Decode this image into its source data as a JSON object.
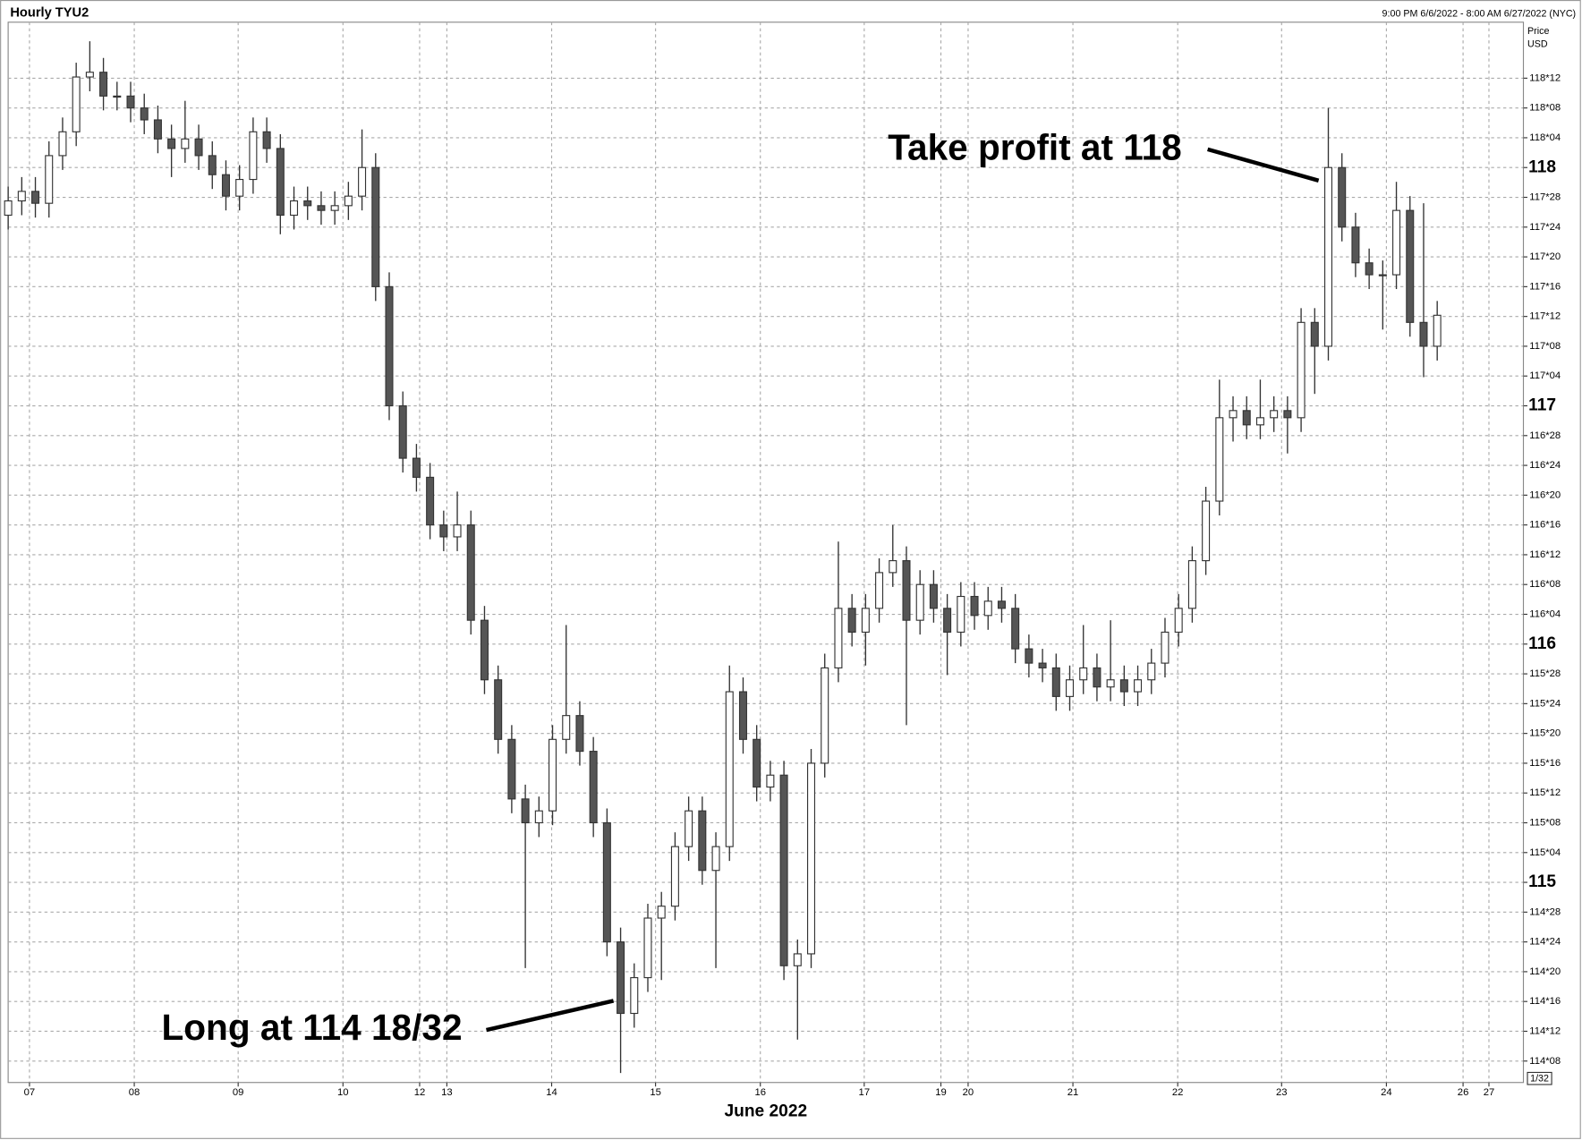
{
  "chart_data": {
    "type": "candlestick",
    "title": "Hourly TYU2",
    "subtitle": "9:00 PM 6/6/2022 - 8:00 AM 6/27/2022 (NYC)",
    "y_label": "Price",
    "y_unit": "USD",
    "x_label": "June 2022",
    "tick_unit": "1/32",
    "annotations": [
      {
        "text": "Take profit at 118"
      },
      {
        "text": "Long at 114 18/32"
      }
    ],
    "grid": true,
    "xlim": [
      0,
      334
    ],
    "ylim": [
      114.16,
      118.61
    ],
    "xticks": [
      {
        "value": 4.7,
        "label": "07"
      },
      {
        "value": 27.8,
        "label": "08"
      },
      {
        "value": 50.7,
        "label": "09"
      },
      {
        "value": 73.8,
        "label": "10"
      },
      {
        "value": 90.7,
        "label": "12"
      },
      {
        "value": 96.7,
        "label": "13"
      },
      {
        "value": 119.8,
        "label": "14"
      },
      {
        "value": 142.7,
        "label": "15"
      },
      {
        "value": 165.8,
        "label": "16"
      },
      {
        "value": 188.7,
        "label": "17"
      },
      {
        "value": 205.6,
        "label": "19"
      },
      {
        "value": 211.6,
        "label": "20"
      },
      {
        "value": 234.7,
        "label": "21"
      },
      {
        "value": 257.8,
        "label": "22"
      },
      {
        "value": 280.7,
        "label": "23"
      },
      {
        "value": 303.8,
        "label": "24"
      },
      {
        "value": 320.7,
        "label": "26"
      },
      {
        "value": 326.4,
        "label": "27"
      }
    ],
    "yticks": [
      {
        "value": 114.25,
        "label": "114*08"
      },
      {
        "value": 114.375,
        "label": "114*12"
      },
      {
        "value": 114.5,
        "label": "114*16"
      },
      {
        "value": 114.625,
        "label": "114*20"
      },
      {
        "value": 114.75,
        "label": "114*24"
      },
      {
        "value": 114.875,
        "label": "114*28"
      },
      115,
      {
        "value": 115.125,
        "label": "115*04"
      },
      {
        "value": 115.25,
        "label": "115*08"
      },
      {
        "value": 115.375,
        "label": "115*12"
      },
      {
        "value": 115.5,
        "label": "115*16"
      },
      {
        "value": 115.625,
        "label": "115*20"
      },
      {
        "value": 115.75,
        "label": "115*24"
      },
      {
        "value": 115.875,
        "label": "115*28"
      },
      116,
      {
        "value": 116.125,
        "label": "116*04"
      },
      {
        "value": 116.25,
        "label": "116*08"
      },
      {
        "value": 116.375,
        "label": "116*12"
      },
      {
        "value": 116.5,
        "label": "116*16"
      },
      {
        "value": 116.625,
        "label": "116*20"
      },
      {
        "value": 116.75,
        "label": "116*24"
      },
      {
        "value": 116.875,
        "label": "116*28"
      },
      117,
      {
        "value": 117.125,
        "label": "117*04"
      },
      {
        "value": 117.25,
        "label": "117*08"
      },
      {
        "value": 117.375,
        "label": "117*12"
      },
      {
        "value": 117.5,
        "label": "117*16"
      },
      {
        "value": 117.625,
        "label": "117*20"
      },
      {
        "value": 117.75,
        "label": "117*24"
      },
      {
        "value": 117.875,
        "label": "117*28"
      },
      118,
      {
        "value": 118.125,
        "label": "118*04"
      },
      {
        "value": 118.25,
        "label": "118*08"
      },
      {
        "value": 118.375,
        "label": "118*12"
      }
    ],
    "up_color": "#ffffff",
    "down_color": "#555555",
    "line_color": "#333333",
    "x": [
      0,
      3,
      6,
      9,
      12,
      15,
      18,
      21,
      24,
      27,
      30,
      33,
      36,
      39,
      42,
      45,
      48,
      51,
      54,
      57,
      60,
      63,
      66,
      69,
      72,
      75,
      78,
      81,
      84,
      87,
      90,
      93,
      96,
      99,
      102,
      105,
      108,
      111,
      114,
      117,
      120,
      123,
      126,
      129,
      132,
      135,
      138,
      141,
      144,
      147,
      150,
      153,
      156,
      159,
      162,
      165,
      168,
      171,
      174,
      177,
      180,
      183,
      186,
      189,
      192,
      195,
      198,
      201,
      204,
      207,
      210,
      213,
      216,
      219,
      222,
      225,
      228,
      231,
      234,
      237,
      240,
      243,
      246,
      249,
      252,
      255,
      258,
      261,
      264,
      267,
      270,
      273,
      276,
      279,
      282,
      285,
      288,
      291,
      294,
      297,
      300,
      303,
      306,
      309,
      312,
      315
    ],
    "open": [
      117.8,
      117.86,
      117.9,
      117.85,
      118.05,
      118.15,
      118.38,
      118.4,
      118.3,
      118.3,
      118.25,
      118.2,
      118.12,
      118.08,
      118.12,
      118.05,
      117.97,
      117.88,
      117.95,
      118.15,
      118.08,
      117.8,
      117.86,
      117.84,
      117.82,
      117.84,
      117.88,
      118.0,
      117.5,
      117.0,
      116.78,
      116.7,
      116.5,
      116.45,
      116.5,
      116.1,
      115.85,
      115.6,
      115.35,
      115.25,
      115.3,
      115.6,
      115.7,
      115.55,
      115.25,
      114.75,
      114.45,
      114.6,
      114.85,
      114.9,
      115.15,
      115.3,
      115.05,
      115.15,
      115.8,
      115.6,
      115.4,
      115.45,
      114.65,
      114.7,
      115.5,
      115.9,
      116.15,
      116.05,
      116.15,
      116.3,
      116.35,
      116.1,
      116.25,
      116.15,
      116.05,
      116.2,
      116.12,
      116.18,
      116.15,
      115.98,
      115.92,
      115.9,
      115.78,
      115.85,
      115.9,
      115.82,
      115.85,
      115.8,
      115.85,
      115.92,
      116.05,
      116.15,
      116.35,
      116.6,
      116.95,
      116.98,
      116.92,
      116.95,
      116.98,
      116.95,
      117.35,
      117.25,
      118.0,
      117.75,
      117.6,
      117.55,
      117.55,
      117.82,
      117.35,
      117.25
    ],
    "high": [
      117.92,
      117.96,
      117.96,
      118.11,
      118.21,
      118.44,
      118.53,
      118.46,
      118.36,
      118.36,
      118.31,
      118.26,
      118.18,
      118.28,
      118.18,
      118.11,
      118.03,
      118.01,
      118.21,
      118.21,
      118.14,
      117.92,
      117.92,
      117.9,
      117.9,
      117.94,
      118.16,
      118.06,
      117.56,
      117.06,
      116.84,
      116.76,
      116.56,
      116.64,
      116.56,
      116.16,
      115.91,
      115.66,
      115.41,
      115.36,
      115.66,
      116.08,
      115.76,
      115.61,
      115.31,
      114.81,
      114.66,
      114.91,
      114.96,
      115.21,
      115.36,
      115.36,
      115.21,
      115.91,
      115.86,
      115.66,
      115.51,
      115.51,
      114.76,
      115.56,
      115.96,
      116.43,
      116.21,
      116.21,
      116.36,
      116.5,
      116.41,
      116.31,
      116.31,
      116.21,
      116.26,
      116.26,
      116.24,
      116.24,
      116.21,
      116.04,
      115.98,
      115.96,
      115.91,
      116.08,
      115.96,
      116.1,
      115.91,
      115.91,
      115.98,
      116.11,
      116.21,
      116.41,
      116.66,
      117.11,
      117.04,
      117.04,
      117.11,
      117.04,
      117.04,
      117.41,
      117.41,
      118.25,
      118.06,
      117.81,
      117.66,
      117.61,
      117.94,
      117.88,
      117.85,
      117.44
    ],
    "low": [
      117.74,
      117.8,
      117.79,
      117.79,
      117.99,
      118.09,
      118.32,
      118.24,
      118.24,
      118.19,
      118.14,
      118.06,
      117.96,
      118.02,
      117.99,
      117.91,
      117.82,
      117.82,
      117.89,
      118.02,
      117.72,
      117.74,
      117.78,
      117.76,
      117.76,
      117.78,
      117.82,
      117.44,
      116.94,
      116.72,
      116.64,
      116.44,
      116.39,
      116.39,
      116.04,
      115.79,
      115.54,
      115.29,
      114.64,
      115.19,
      115.24,
      115.54,
      115.49,
      115.19,
      114.69,
      114.2,
      114.39,
      114.54,
      114.59,
      114.84,
      115.09,
      114.99,
      114.64,
      115.09,
      115.54,
      115.34,
      115.34,
      114.59,
      114.34,
      114.64,
      115.44,
      115.84,
      115.99,
      115.91,
      116.09,
      116.24,
      115.66,
      116.04,
      116.09,
      115.87,
      115.99,
      116.06,
      116.06,
      116.09,
      115.92,
      115.86,
      115.84,
      115.72,
      115.72,
      115.79,
      115.76,
      115.76,
      115.74,
      115.74,
      115.79,
      115.86,
      115.99,
      116.09,
      116.29,
      116.54,
      116.85,
      116.86,
      116.86,
      116.89,
      116.8,
      116.89,
      117.05,
      117.19,
      117.69,
      117.54,
      117.49,
      117.32,
      117.49,
      117.29,
      117.12,
      117.19
    ],
    "close": [
      117.86,
      117.9,
      117.85,
      118.05,
      118.15,
      118.38,
      118.4,
      118.3,
      118.3,
      118.25,
      118.2,
      118.12,
      118.08,
      118.12,
      118.05,
      117.97,
      117.88,
      117.95,
      118.15,
      118.08,
      117.8,
      117.86,
      117.84,
      117.82,
      117.84,
      117.88,
      118.0,
      117.5,
      117.0,
      116.78,
      116.7,
      116.5,
      116.45,
      116.5,
      116.1,
      115.85,
      115.6,
      115.35,
      115.25,
      115.3,
      115.6,
      115.7,
      115.55,
      115.25,
      114.75,
      114.45,
      114.6,
      114.85,
      114.9,
      115.15,
      115.3,
      115.05,
      115.15,
      115.8,
      115.6,
      115.4,
      115.45,
      114.65,
      114.7,
      115.5,
      115.9,
      116.15,
      116.05,
      116.15,
      116.3,
      116.35,
      116.1,
      116.25,
      116.15,
      116.05,
      116.2,
      116.12,
      116.18,
      116.15,
      115.98,
      115.92,
      115.9,
      115.78,
      115.85,
      115.9,
      115.82,
      115.85,
      115.8,
      115.85,
      115.92,
      116.05,
      116.15,
      116.35,
      116.6,
      116.95,
      116.98,
      116.92,
      116.95,
      116.98,
      116.95,
      117.35,
      117.25,
      118.0,
      117.75,
      117.6,
      117.55,
      117.55,
      117.82,
      117.35,
      117.25,
      117.38
    ]
  }
}
